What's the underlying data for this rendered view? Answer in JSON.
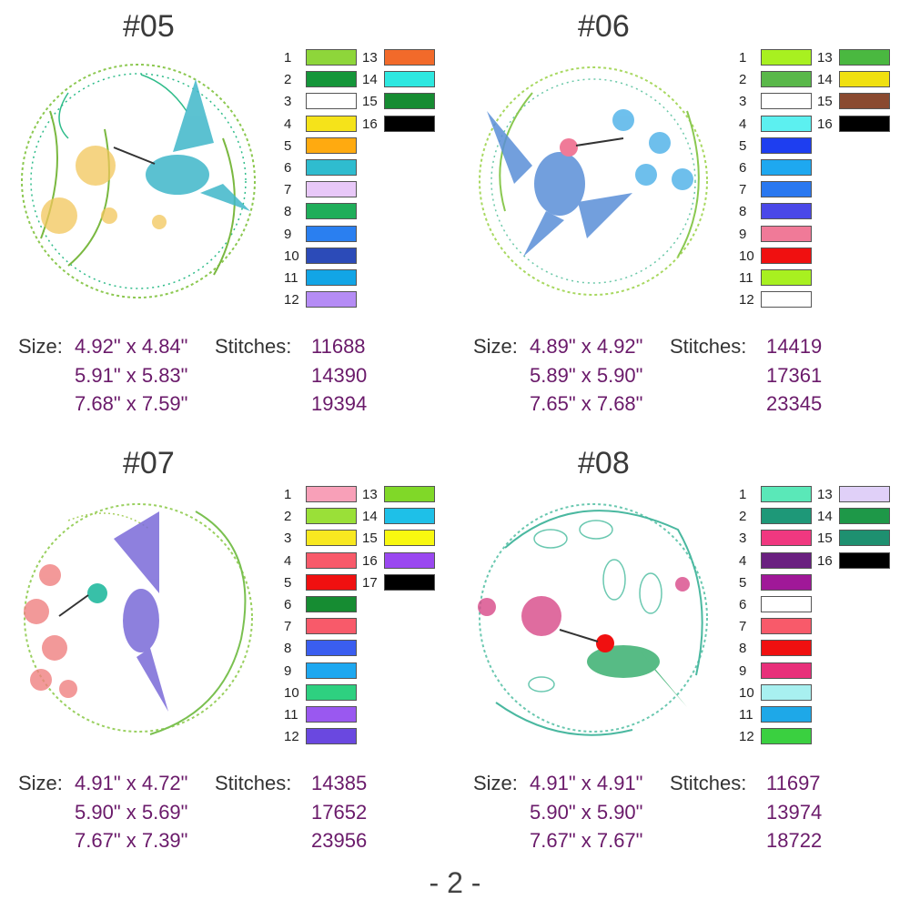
{
  "page_number": "- 2 -",
  "designs": [
    {
      "title": "#05",
      "flower_color": "#f2c65a",
      "bird_color": "#3fb7c9",
      "palette_col1": [
        {
          "num": "1",
          "color": "#8ed63a"
        },
        {
          "num": "2",
          "color": "#15963a"
        },
        {
          "num": "3",
          "color": "#ffffff"
        },
        {
          "num": "4",
          "color": "#f5e31a"
        },
        {
          "num": "5",
          "color": "#ffaa10"
        },
        {
          "num": "6",
          "color": "#2fbccf"
        },
        {
          "num": "7",
          "color": "#e8c8f8"
        },
        {
          "num": "8",
          "color": "#1fae5a"
        },
        {
          "num": "9",
          "color": "#2a7ff0"
        },
        {
          "num": "10",
          "color": "#2c4bb8"
        },
        {
          "num": "11",
          "color": "#12a5e6"
        },
        {
          "num": "12",
          "color": "#b58cf5"
        }
      ],
      "palette_col2": [
        {
          "num": "13",
          "color": "#f26a2a"
        },
        {
          "num": "14",
          "color": "#2ee8e0"
        },
        {
          "num": "15",
          "color": "#168c32"
        },
        {
          "num": "16",
          "color": "#000000"
        }
      ],
      "size_label": "Size:",
      "stitches_label": "Stitches:",
      "sizes": [
        "4.92\" x 4.84\"",
        "5.91\" x 5.83\"",
        "7.68\" x 7.59\""
      ],
      "stitches": [
        "11688",
        "14390",
        "19394"
      ]
    },
    {
      "title": "#06",
      "flower_color": "#4ab0e8",
      "bird_color": "#5a8fd8",
      "palette_col1": [
        {
          "num": "1",
          "color": "#a8f020"
        },
        {
          "num": "2",
          "color": "#5ab84a"
        },
        {
          "num": "3",
          "color": "#ffffff"
        },
        {
          "num": "4",
          "color": "#5cf0f0"
        },
        {
          "num": "5",
          "color": "#1e3ef0"
        },
        {
          "num": "6",
          "color": "#1ea8f0"
        },
        {
          "num": "7",
          "color": "#2a78f0"
        },
        {
          "num": "8",
          "color": "#4a48e8"
        },
        {
          "num": "9",
          "color": "#f07a98"
        },
        {
          "num": "10",
          "color": "#f01010"
        },
        {
          "num": "11",
          "color": "#a8f020"
        },
        {
          "num": "12",
          "color": "#ffffff"
        }
      ],
      "palette_col2": [
        {
          "num": "13",
          "color": "#4ab840"
        },
        {
          "num": "14",
          "color": "#f0e010"
        },
        {
          "num": "15",
          "color": "#8a4a30"
        },
        {
          "num": "16",
          "color": "#000000"
        }
      ],
      "size_label": "Size:",
      "stitches_label": "Stitches:",
      "sizes": [
        "4.89\" x 4.92\"",
        "5.89\" x 5.90\"",
        "7.65\" x 7.68\""
      ],
      "stitches": [
        "14419",
        "17361",
        "23345"
      ]
    },
    {
      "title": "#07",
      "flower_color": "#f08080",
      "bird_color": "#7a6ad8",
      "palette_col1": [
        {
          "num": "1",
          "color": "#f8a0b8"
        },
        {
          "num": "2",
          "color": "#9ae038"
        },
        {
          "num": "3",
          "color": "#f8e820"
        },
        {
          "num": "4",
          "color": "#f85a6a"
        },
        {
          "num": "5",
          "color": "#f01010"
        },
        {
          "num": "6",
          "color": "#168c32"
        },
        {
          "num": "7",
          "color": "#f85a6a"
        },
        {
          "num": "8",
          "color": "#3a5ef0"
        },
        {
          "num": "9",
          "color": "#1ea8f0"
        },
        {
          "num": "10",
          "color": "#2ed080"
        },
        {
          "num": "11",
          "color": "#9a58f0"
        },
        {
          "num": "12",
          "color": "#6a48e0"
        }
      ],
      "palette_col2": [
        {
          "num": "13",
          "color": "#80d828"
        },
        {
          "num": "14",
          "color": "#1ec0e8"
        },
        {
          "num": "15",
          "color": "#f8f810"
        },
        {
          "num": "16",
          "color": "#9a48f0"
        },
        {
          "num": "17",
          "color": "#000000"
        }
      ],
      "size_label": "Size:",
      "stitches_label": "Stitches:",
      "sizes": [
        "4.91\" x 4.72\"",
        "5.90\" x 5.69\"",
        "7.67\" x 7.39\""
      ],
      "stitches": [
        "14385",
        "17652",
        "23956"
      ]
    },
    {
      "title": "#08",
      "flower_color": "#d84888",
      "bird_color": "#3ab070",
      "palette_col1": [
        {
          "num": "1",
          "color": "#5ae8b8"
        },
        {
          "num": "2",
          "color": "#1e9878"
        },
        {
          "num": "3",
          "color": "#f03880"
        },
        {
          "num": "4",
          "color": "#6a2080"
        },
        {
          "num": "5",
          "color": "#a01898"
        },
        {
          "num": "6",
          "color": "#ffffff"
        },
        {
          "num": "7",
          "color": "#f85a6a"
        },
        {
          "num": "8",
          "color": "#f01010"
        },
        {
          "num": "9",
          "color": "#e8307a"
        },
        {
          "num": "10",
          "color": "#a8f0f0"
        },
        {
          "num": "11",
          "color": "#1ea8e8"
        },
        {
          "num": "12",
          "color": "#3ad040"
        }
      ],
      "palette_col2": [
        {
          "num": "13",
          "color": "#e0d0f8"
        },
        {
          "num": "14",
          "color": "#1e9848"
        },
        {
          "num": "15",
          "color": "#1e9070"
        },
        {
          "num": "16",
          "color": "#000000"
        }
      ],
      "size_label": "Size:",
      "stitches_label": "Stitches:",
      "sizes": [
        "4.91\" x 4.91\"",
        "5.90\" x 5.90\"",
        "7.67\" x 7.67\""
      ],
      "stitches": [
        "11697",
        "13974",
        "18722"
      ]
    }
  ]
}
